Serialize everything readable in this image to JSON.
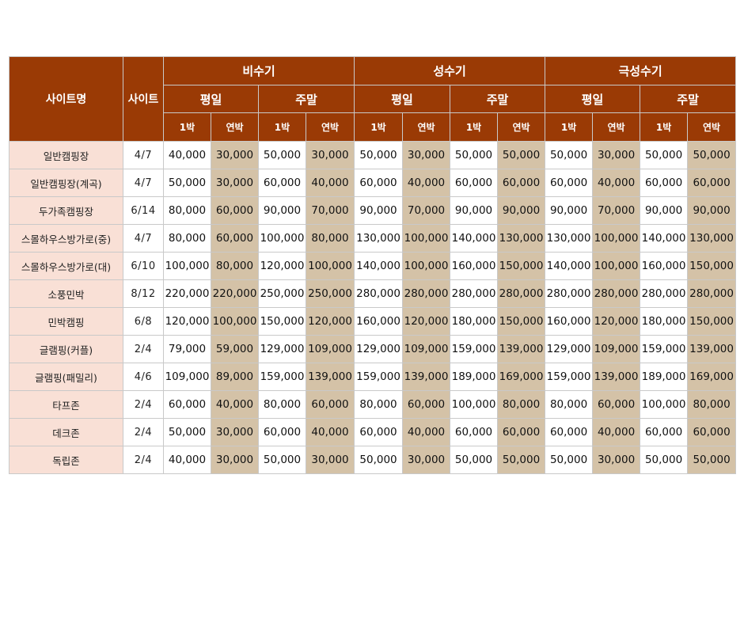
{
  "header": {
    "site_name_label": "사이트명",
    "site_label": "사이트",
    "seasons": [
      "비수기",
      "성수기",
      "극성수기"
    ],
    "day_types": [
      "평일",
      "주말",
      "평일",
      "주말",
      "평일",
      "주말"
    ],
    "night_types": [
      "1박",
      "연박",
      "1박",
      "연박",
      "1박",
      "연박",
      "1박",
      "연박",
      "1박",
      "연박",
      "1박",
      "연박"
    ]
  },
  "rows": [
    {
      "name": "일반캠핑장",
      "site": "4/7",
      "prices": [
        "40,000",
        "30,000",
        "50,000",
        "30,000",
        "50,000",
        "30,000",
        "50,000",
        "50,000",
        "50,000",
        "30,000",
        "50,000",
        "50,000"
      ]
    },
    {
      "name": "일반캠핑장(계곡)",
      "site": "4/7",
      "prices": [
        "50,000",
        "30,000",
        "60,000",
        "40,000",
        "60,000",
        "40,000",
        "60,000",
        "60,000",
        "60,000",
        "40,000",
        "60,000",
        "60,000"
      ]
    },
    {
      "name": "두가족캠핑장",
      "site": "6/14",
      "prices": [
        "80,000",
        "60,000",
        "90,000",
        "70,000",
        "90,000",
        "70,000",
        "90,000",
        "90,000",
        "90,000",
        "70,000",
        "90,000",
        "90,000"
      ]
    },
    {
      "name": "스몰하우스방가로(중)",
      "site": "4/7",
      "prices": [
        "80,000",
        "60,000",
        "100,000",
        "80,000",
        "130,000",
        "100,000",
        "140,000",
        "130,000",
        "130,000",
        "100,000",
        "140,000",
        "130,000"
      ]
    },
    {
      "name": "스몰하우스방가로(대)",
      "site": "6/10",
      "prices": [
        "100,000",
        "80,000",
        "120,000",
        "100,000",
        "140,000",
        "100,000",
        "160,000",
        "150,000",
        "140,000",
        "100,000",
        "160,000",
        "150,000"
      ]
    },
    {
      "name": "소풍민박",
      "site": "8/12",
      "prices": [
        "220,000",
        "220,000",
        "250,000",
        "250,000",
        "280,000",
        "280,000",
        "280,000",
        "280,000",
        "280,000",
        "280,000",
        "280,000",
        "280,000"
      ]
    },
    {
      "name": "민박캠핑",
      "site": "6/8",
      "prices": [
        "120,000",
        "100,000",
        "150,000",
        "120,000",
        "160,000",
        "120,000",
        "180,000",
        "150,000",
        "160,000",
        "120,000",
        "180,000",
        "150,000"
      ]
    },
    {
      "name": "글램핑(커플)",
      "site": "2/4",
      "prices": [
        "79,000",
        "59,000",
        "129,000",
        "109,000",
        "129,000",
        "109,000",
        "159,000",
        "139,000",
        "129,000",
        "109,000",
        "159,000",
        "139,000"
      ]
    },
    {
      "name": "글램핑(패밀리)",
      "site": "4/6",
      "prices": [
        "109,000",
        "89,000",
        "159,000",
        "139,000",
        "159,000",
        "139,000",
        "189,000",
        "169,000",
        "159,000",
        "139,000",
        "189,000",
        "169,000"
      ]
    },
    {
      "name": "타프존",
      "site": "2/4",
      "prices": [
        "60,000",
        "40,000",
        "80,000",
        "60,000",
        "80,000",
        "60,000",
        "100,000",
        "80,000",
        "80,000",
        "60,000",
        "100,000",
        "80,000"
      ]
    },
    {
      "name": "데크존",
      "site": "2/4",
      "prices": [
        "50,000",
        "30,000",
        "60,000",
        "40,000",
        "60,000",
        "40,000",
        "60,000",
        "60,000",
        "60,000",
        "40,000",
        "60,000",
        "60,000"
      ]
    },
    {
      "name": "독립존",
      "site": "2/4",
      "prices": [
        "40,000",
        "30,000",
        "50,000",
        "30,000",
        "50,000",
        "30,000",
        "50,000",
        "50,000",
        "50,000",
        "30,000",
        "50,000",
        "50,000"
      ]
    }
  ],
  "colors": {
    "header_bg": "#9a3a05",
    "site_name_bg": "#f9e0d6",
    "consecutive_bg": "#d4c2a7",
    "single_bg": "#ffffff"
  }
}
